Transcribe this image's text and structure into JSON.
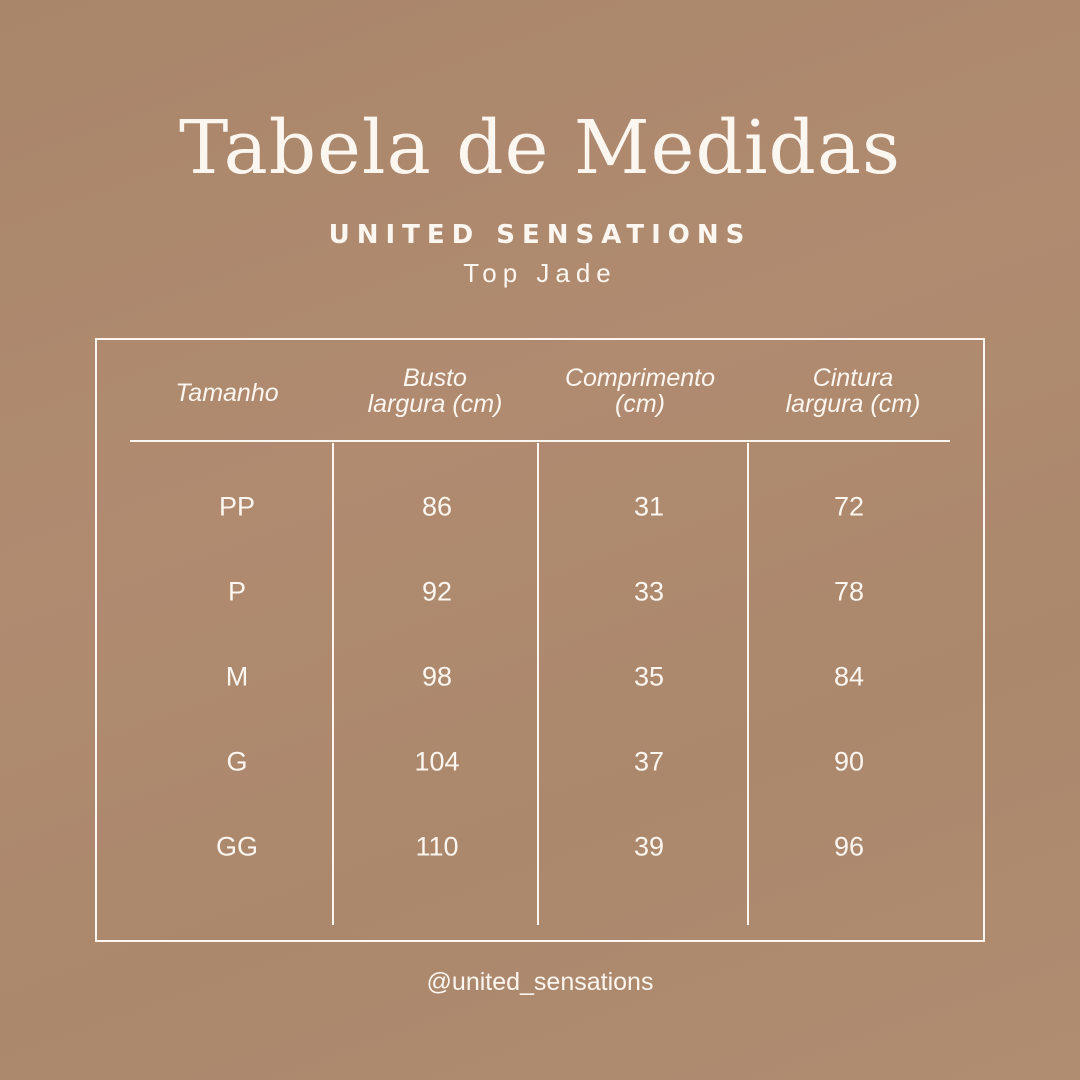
{
  "title": "Tabela de Medidas",
  "brand": "UNITED SENSATIONS",
  "product": "Top Jade",
  "table": {
    "headers": [
      "Tamanho",
      "Busto\nlargura (cm)",
      "Comprimento\n(cm)",
      "Cintura\nlargura (cm)"
    ],
    "header_lines": [
      [
        "Tamanho"
      ],
      [
        "Busto",
        "largura (cm)"
      ],
      [
        "Comprimento",
        "(cm)"
      ],
      [
        "Cintura",
        "largura (cm)"
      ]
    ],
    "rows": [
      [
        "PP",
        "86",
        "31",
        "72"
      ],
      [
        "P",
        "92",
        "33",
        "78"
      ],
      [
        "M",
        "98",
        "35",
        "84"
      ],
      [
        "G",
        "104",
        "37",
        "90"
      ],
      [
        "GG",
        "110",
        "39",
        "96"
      ]
    ]
  },
  "footer": {
    "handle": "@united_sensations"
  },
  "colors": {
    "background": "#ad886d",
    "text": "#fbf6f0"
  }
}
